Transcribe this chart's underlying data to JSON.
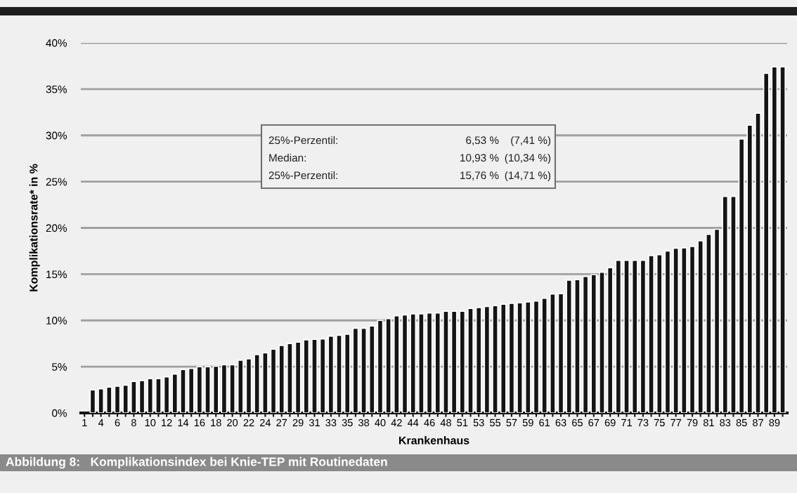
{
  "chart_data": {
    "type": "bar",
    "title": "Abbildung 8:   Komplikationsindex bei Knie-TEP mit Routinedaten",
    "xlabel": "Krankenhaus",
    "ylabel": "Komplikationsrate* in %",
    "categories": [
      "1",
      null,
      "4",
      null,
      "6",
      null,
      "8",
      null,
      "10",
      null,
      "12",
      null,
      "14",
      null,
      "16",
      null,
      "18",
      null,
      "20",
      null,
      "22",
      null,
      "24",
      null,
      "27",
      null,
      "29",
      null,
      "31",
      null,
      "33",
      null,
      "35",
      null,
      "38",
      null,
      "40",
      null,
      "42",
      null,
      "44",
      null,
      "46",
      null,
      "48",
      null,
      "51",
      null,
      "53",
      null,
      "55",
      null,
      "57",
      null,
      "59",
      null,
      "61",
      null,
      "63",
      null,
      "65",
      null,
      "67",
      null,
      "69",
      null,
      "71",
      null,
      "73",
      null,
      "75",
      null,
      "77",
      null,
      "79",
      null,
      "81",
      null,
      "83",
      null,
      "85",
      null,
      "87",
      null,
      "89",
      null
    ],
    "values": [
      null,
      2.5,
      2.6,
      2.8,
      2.9,
      3.0,
      3.4,
      3.5,
      3.7,
      3.7,
      3.9,
      4.2,
      4.7,
      4.8,
      5.0,
      5.0,
      5.05,
      5.2,
      5.2,
      5.7,
      5.85,
      6.3,
      6.5,
      6.9,
      7.3,
      7.5,
      7.65,
      7.9,
      7.95,
      8.0,
      8.3,
      8.4,
      8.5,
      9.15,
      9.15,
      9.4,
      10.0,
      10.2,
      10.5,
      10.6,
      10.7,
      10.7,
      10.8,
      10.8,
      11.0,
      11.0,
      11.0,
      11.3,
      11.4,
      11.5,
      11.6,
      11.75,
      11.85,
      11.9,
      12.0,
      12.1,
      12.4,
      12.85,
      12.9,
      14.35,
      14.4,
      14.75,
      14.95,
      15.2,
      15.7,
      16.5,
      16.5,
      16.5,
      16.5,
      17.0,
      17.1,
      17.5,
      17.8,
      17.85,
      18.0,
      18.6,
      19.3,
      19.85,
      23.4,
      23.4,
      29.6,
      31.1,
      32.4,
      36.7,
      37.4,
      37.4
    ],
    "color": "#141414",
    "ylim": [
      0,
      40
    ],
    "yticks": [
      {
        "value": 0,
        "label": "0%"
      },
      {
        "value": 5,
        "label": "5%"
      },
      {
        "value": 10,
        "label": "10%"
      },
      {
        "value": 15,
        "label": "15%"
      },
      {
        "value": 20,
        "label": "20%"
      },
      {
        "value": 25,
        "label": "25%"
      },
      {
        "value": 30,
        "label": "30%"
      },
      {
        "value": 35,
        "label": "35%"
      },
      {
        "value": 40,
        "label": "40%"
      }
    ],
    "grid": "y",
    "annotations": [
      "25%-Perzentil:",
      "6,53 %",
      "(7,41 %)",
      "Median:",
      "10,93 %",
      "(10,34 %)",
      "25%-Perzentil:",
      "15,76 %",
      "(14,71 %)"
    ]
  }
}
